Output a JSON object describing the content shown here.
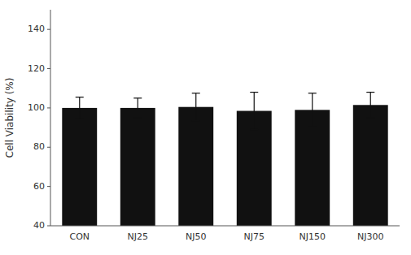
{
  "chart_data": {
    "type": "bar",
    "categories": [
      "CON",
      "NJ25",
      "NJ50",
      "NJ75",
      "NJ150",
      "NJ300"
    ],
    "values": [
      100.0,
      100.0,
      100.5,
      98.5,
      99.0,
      101.5
    ],
    "errors": [
      5.5,
      5.0,
      7.0,
      9.5,
      8.5,
      6.5
    ],
    "color": "#111111",
    "ylabel": "Cell Viability (%)",
    "ylim": [
      40,
      150
    ],
    "yticks": [
      40,
      60,
      80,
      100,
      120,
      140
    ]
  }
}
